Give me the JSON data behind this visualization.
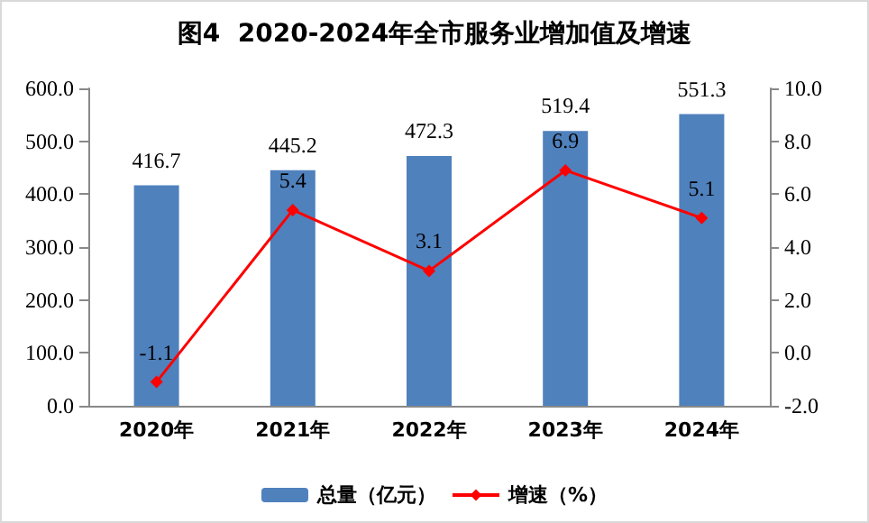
{
  "chart_data": {
    "type": "bar",
    "title": "图4  2020-2024年全市服务业增加值及增速",
    "categories": [
      "2020年",
      "2021年",
      "2022年",
      "2023年",
      "2024年"
    ],
    "series": [
      {
        "name": "总量（亿元）",
        "color": "#4f81bd",
        "values": [
          416.7,
          445.2,
          472.3,
          519.4,
          551.3
        ]
      },
      {
        "name": "增速（%）",
        "type": "line",
        "axis": "y2",
        "color": "#ff0000",
        "values": [
          -1.1,
          5.4,
          3.1,
          6.9,
          5.1
        ]
      }
    ],
    "ylim": [
      0,
      600
    ],
    "yticks": [
      {
        "value": 0,
        "label": "0.0"
      },
      {
        "value": 100,
        "label": "100.0"
      },
      {
        "value": 200,
        "label": "200.0"
      },
      {
        "value": 300,
        "label": "300.0"
      },
      {
        "value": 400,
        "label": "400.0"
      },
      {
        "value": 500,
        "label": "500.0"
      },
      {
        "value": 600,
        "label": "600.0"
      }
    ],
    "y2lim": [
      -2,
      10
    ],
    "y2ticks": [
      {
        "value": -2,
        "label": "-2.0"
      },
      {
        "value": 0,
        "label": "0.0"
      },
      {
        "value": 2,
        "label": "2.0"
      },
      {
        "value": 4,
        "label": "4.0"
      },
      {
        "value": 6,
        "label": "6.0"
      },
      {
        "value": 8,
        "label": "8.0"
      },
      {
        "value": 10,
        "label": "10.0"
      }
    ],
    "data_labels": true,
    "legend": "bottom",
    "marker": "diamond",
    "line_style": "solid",
    "grid": false
  }
}
